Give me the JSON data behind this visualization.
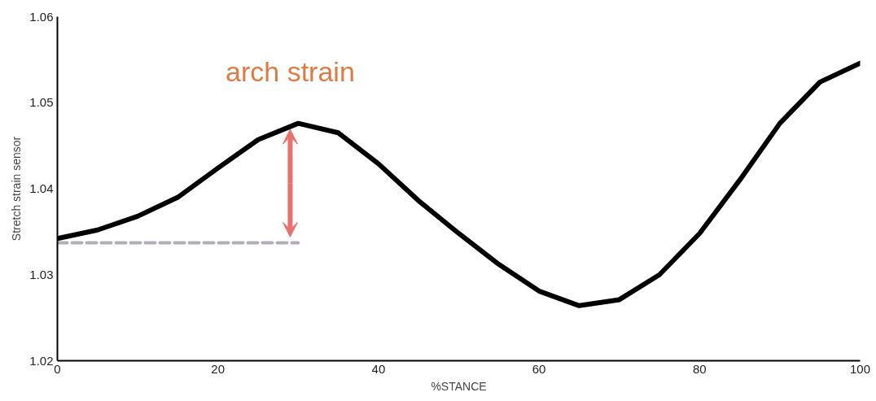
{
  "chart_data": {
    "type": "line",
    "xlabel": "%STANCE",
    "ylabel": "Stretch strain sensor",
    "xlim": [
      0,
      100
    ],
    "ylim": [
      1.02,
      1.06
    ],
    "xticks": [
      0,
      20,
      40,
      60,
      80,
      100
    ],
    "yticks": [
      1.02,
      1.03,
      1.04,
      1.05,
      1.06
    ],
    "series": [
      {
        "color": "#000000",
        "line_style": "solid",
        "x": [
          0,
          5,
          10,
          15,
          20,
          25,
          30,
          35,
          40,
          45,
          50,
          55,
          60,
          65,
          70,
          75,
          80,
          85,
          90,
          95,
          100
        ],
        "values": [
          1.0342,
          1.0352,
          1.0368,
          1.039,
          1.0424,
          1.0457,
          1.0476,
          1.0465,
          1.0429,
          1.0386,
          1.0348,
          1.0312,
          1.0281,
          1.0264,
          1.0271,
          1.03,
          1.0348,
          1.041,
          1.0476,
          1.0524,
          1.0546
        ]
      },
      {
        "color": "#b3adb8",
        "line_style": "dashed",
        "x": [
          0,
          30
        ],
        "values": [
          1.0337,
          1.0337
        ]
      }
    ],
    "annotations": [
      {
        "text": "arch strain",
        "x": 29,
        "y": 1.0476
      }
    ]
  }
}
